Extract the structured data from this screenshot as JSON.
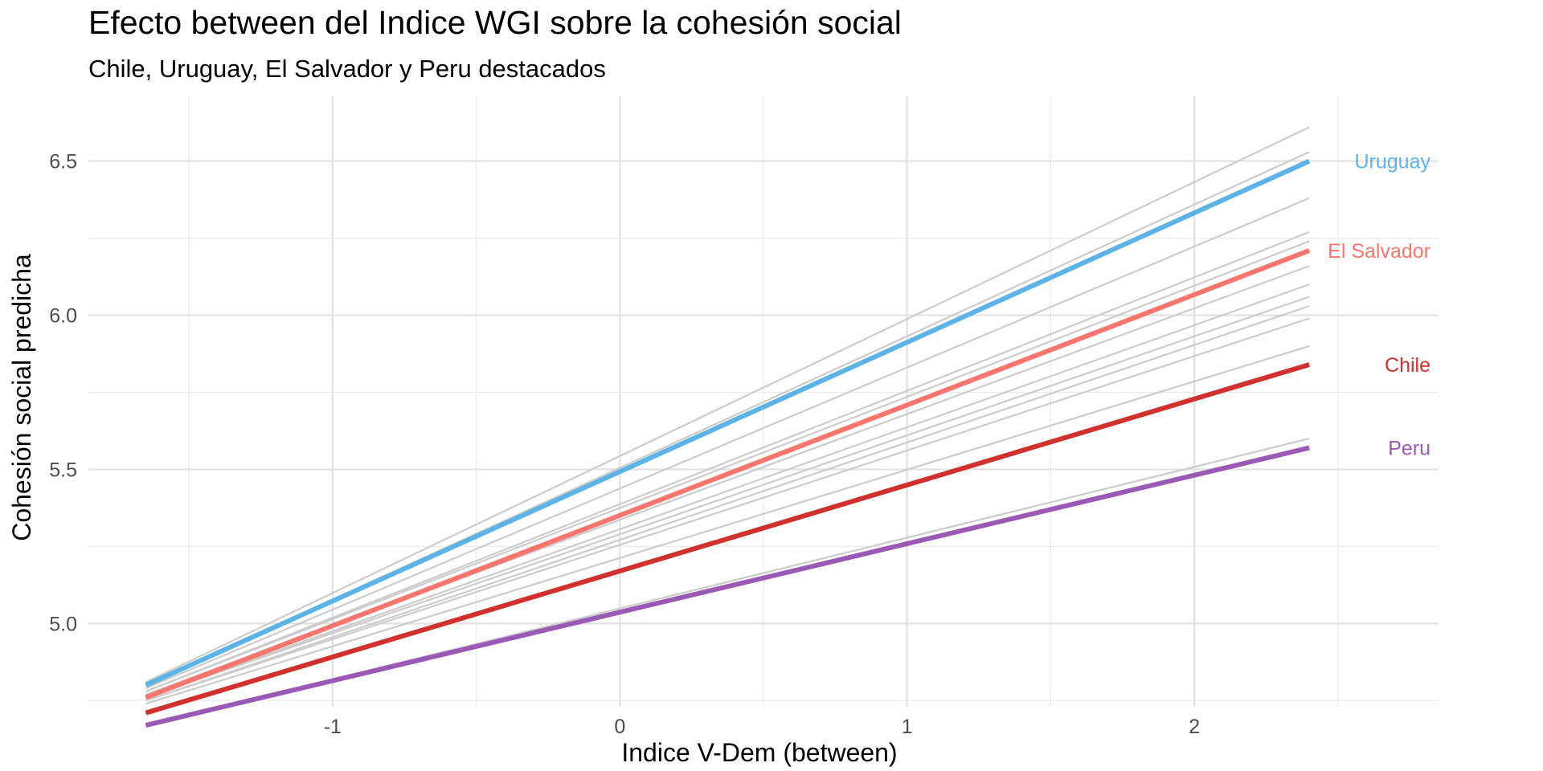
{
  "chart_data": {
    "type": "line",
    "title": "Efecto between del Indice WGI sobre la cohesión social",
    "subtitle": "Chile, Uruguay, El Salvador y Peru destacados",
    "xlabel": "Indice V-Dem (between)",
    "ylabel": "Cohesión social predicha",
    "xlim": [
      -1.85,
      2.85
    ],
    "ylim": [
      4.73,
      6.71
    ],
    "x_ticks": [
      -1,
      0,
      1,
      2
    ],
    "x_tick_labels": [
      "-1",
      "0",
      "1",
      "2"
    ],
    "y_ticks": [
      5.0,
      5.5,
      6.0,
      6.5
    ],
    "y_tick_labels": [
      "5.0",
      "5.5",
      "6.0",
      "6.5"
    ],
    "grid": true,
    "legend": "direct labels at line ends (right)",
    "x_range": [
      -1.65,
      2.4
    ],
    "background_series": [
      {
        "y": [
          4.81,
          6.61
        ]
      },
      {
        "y": [
          4.8,
          6.53
        ]
      },
      {
        "y": [
          4.79,
          6.38
        ]
      },
      {
        "y": [
          4.78,
          6.27
        ]
      },
      {
        "y": [
          4.78,
          6.24
        ]
      },
      {
        "y": [
          4.77,
          6.16
        ]
      },
      {
        "y": [
          4.76,
          6.1
        ]
      },
      {
        "y": [
          4.76,
          6.06
        ]
      },
      {
        "y": [
          4.75,
          6.03
        ]
      },
      {
        "y": [
          4.75,
          5.99
        ]
      },
      {
        "y": [
          4.74,
          5.9
        ]
      },
      {
        "y": [
          4.67,
          5.6
        ]
      }
    ],
    "series": [
      {
        "name": "Uruguay",
        "y": [
          4.8,
          6.5
        ],
        "color": "#5bb4e5"
      },
      {
        "name": "El Salvador",
        "y": [
          4.76,
          6.21
        ],
        "color": "#f8766d"
      },
      {
        "name": "Chile",
        "y": [
          4.71,
          5.84
        ],
        "color": "#d0312d"
      },
      {
        "name": "Peru",
        "y": [
          4.67,
          5.57
        ],
        "color": "#9b59b6"
      }
    ],
    "background_color": "#cccccc"
  }
}
